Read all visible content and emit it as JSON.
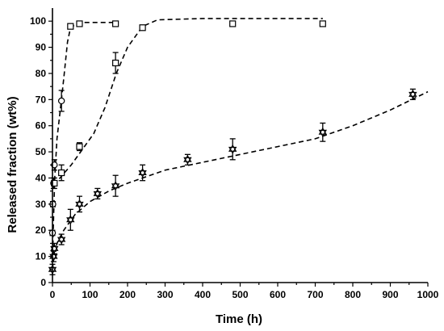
{
  "chart_data": {
    "type": "scatter",
    "xlabel": "Time (h)",
    "ylabel": "Released fraction (wt%)",
    "xlim": [
      0,
      1000
    ],
    "ylim": [
      0,
      105
    ],
    "xticks": [
      "0",
      "100",
      "200",
      "300",
      "400",
      "500",
      "600",
      "700",
      "800",
      "900",
      "1000"
    ],
    "yticks": [
      "0",
      "10",
      "20",
      "30",
      "40",
      "50",
      "60",
      "70",
      "80",
      "90",
      "100"
    ],
    "grid": false,
    "legend": "none",
    "series": [
      {
        "marker": "circle",
        "points": [
          {
            "x": 0,
            "y": 19,
            "err": 1
          },
          {
            "x": 1,
            "y": 30,
            "err": 1
          },
          {
            "x": 3,
            "y": 38,
            "err": 2
          },
          {
            "x": 5,
            "y": 45,
            "err": 2
          },
          {
            "x": 24,
            "y": 69.5,
            "err": 4
          }
        ],
        "fit": [
          [
            0,
            5
          ],
          [
            2,
            20
          ],
          [
            6,
            40
          ],
          [
            12,
            55
          ],
          [
            20,
            65
          ],
          [
            30,
            78
          ],
          [
            40,
            92
          ],
          [
            48,
            97.5
          ],
          [
            70,
            99.5
          ],
          [
            170,
            99.5
          ]
        ]
      },
      {
        "marker": "square",
        "points": [
          {
            "x": 48,
            "y": 98,
            "err": 1
          },
          {
            "x": 72,
            "y": 99,
            "err": 0.5
          },
          {
            "x": 168,
            "y": 99,
            "err": 0.5
          },
          {
            "x": 5,
            "y": 38,
            "err": 2
          },
          {
            "x": 24,
            "y": 42,
            "err": 3
          },
          {
            "x": 72,
            "y": 52,
            "err": 1.5
          },
          {
            "x": 168,
            "y": 84,
            "err": 4
          },
          {
            "x": 240,
            "y": 97.5,
            "err": 1
          },
          {
            "x": 480,
            "y": 99,
            "err": 1
          },
          {
            "x": 720,
            "y": 99,
            "err": 1
          }
        ],
        "fit": [
          [
            0,
            38
          ],
          [
            20,
            40
          ],
          [
            50,
            45
          ],
          [
            80,
            51
          ],
          [
            110,
            57
          ],
          [
            140,
            67
          ],
          [
            170,
            80
          ],
          [
            200,
            90
          ],
          [
            240,
            98
          ],
          [
            280,
            100.5
          ],
          [
            400,
            101
          ],
          [
            600,
            101
          ],
          [
            720,
            101
          ]
        ]
      },
      {
        "marker": "star",
        "points": [
          {
            "x": 0,
            "y": 5,
            "err": 2
          },
          {
            "x": 3,
            "y": 10,
            "err": 2
          },
          {
            "x": 5,
            "y": 13,
            "err": 2
          },
          {
            "x": 24,
            "y": 16.5,
            "err": 2
          },
          {
            "x": 48,
            "y": 24,
            "err": 4
          },
          {
            "x": 72,
            "y": 30,
            "err": 3
          },
          {
            "x": 120,
            "y": 34,
            "err": 2
          },
          {
            "x": 168,
            "y": 37,
            "err": 4
          },
          {
            "x": 240,
            "y": 42,
            "err": 3
          },
          {
            "x": 360,
            "y": 47,
            "err": 2
          },
          {
            "x": 480,
            "y": 51,
            "err": 4
          },
          {
            "x": 720,
            "y": 57.5,
            "err": 3.5
          },
          {
            "x": 960,
            "y": 72,
            "err": 2
          }
        ],
        "fit": [
          [
            0,
            5
          ],
          [
            5,
            12
          ],
          [
            15,
            16
          ],
          [
            30,
            20
          ],
          [
            60,
            26
          ],
          [
            100,
            31
          ],
          [
            150,
            35
          ],
          [
            200,
            38
          ],
          [
            300,
            43
          ],
          [
            400,
            46
          ],
          [
            500,
            49
          ],
          [
            600,
            52
          ],
          [
            700,
            55
          ],
          [
            800,
            60
          ],
          [
            900,
            66
          ],
          [
            1000,
            73
          ]
        ]
      }
    ]
  }
}
